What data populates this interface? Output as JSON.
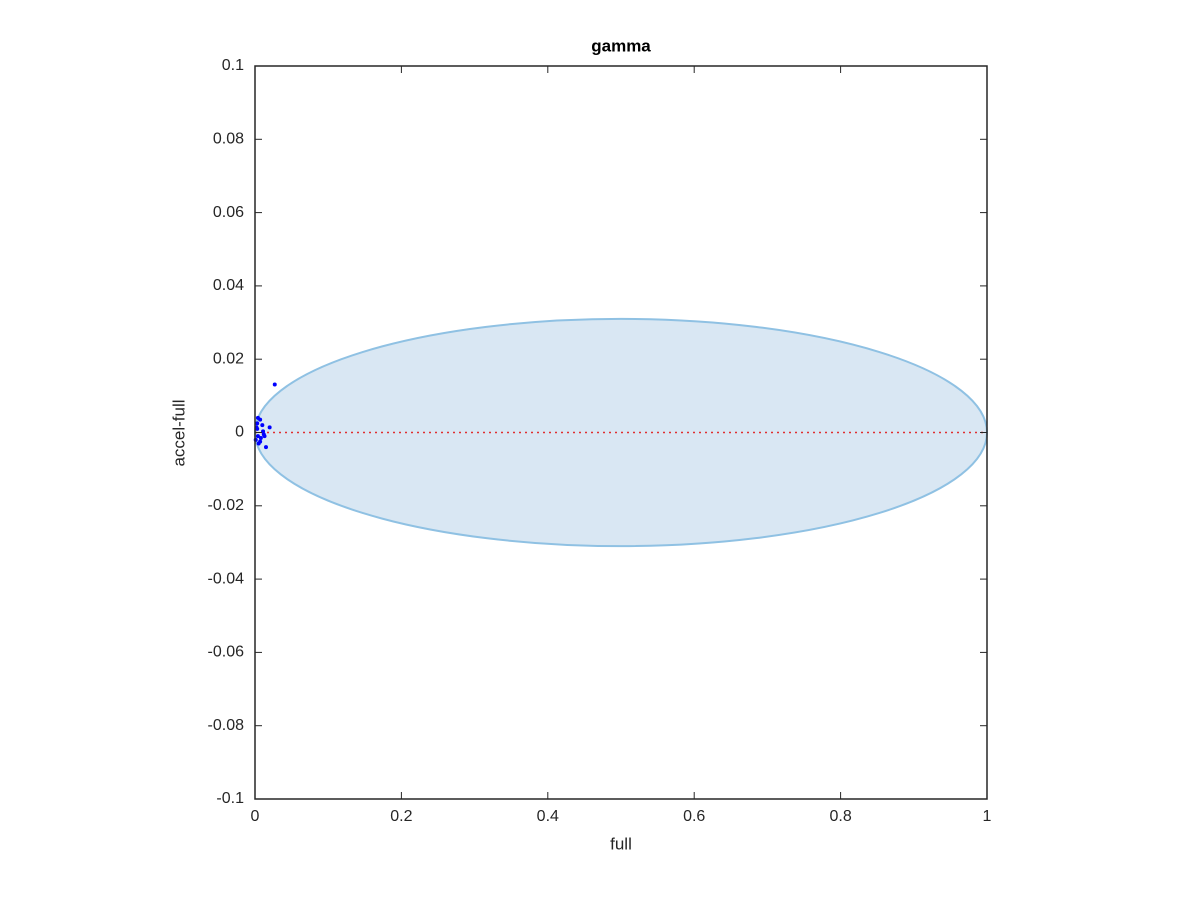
{
  "chart_data": {
    "type": "scatter",
    "title": "gamma",
    "x_label": "full",
    "y_label": "accel-full",
    "xlim": [
      0,
      1
    ],
    "ylim": [
      -0.1,
      0.1
    ],
    "xticks": [
      0,
      0.2,
      0.4,
      0.6,
      0.8,
      1
    ],
    "yticks": [
      -0.1,
      -0.08,
      -0.06,
      -0.04,
      -0.02,
      0,
      0.02,
      0.04,
      0.06,
      0.08,
      0.1
    ],
    "ellipse": {
      "center": [
        0.5,
        0
      ],
      "radii": [
        0.5,
        0.031
      ],
      "fill": "#d9e7f3",
      "stroke": "#8fc1e3"
    },
    "reference_line": {
      "y": 0,
      "color": "#e03030"
    },
    "series": [
      {
        "color": "#0000ff",
        "x": [
          0.027,
          0.004,
          0.007,
          0.01,
          0.015,
          0.02,
          0.012,
          0.003,
          0.001,
          0.005,
          0.008,
          0.011,
          0.004,
          0.003,
          0.007,
          0.013,
          0.002
        ],
        "values": [
          0.0131,
          0.004,
          0.0035,
          0.002,
          -0.004,
          0.0014,
          -0.0005,
          0.001,
          -0.002,
          -0.003,
          -0.0015,
          0.0003,
          -0.001,
          0.0025,
          -0.0025,
          -0.001,
          0.0014
        ]
      }
    ]
  }
}
